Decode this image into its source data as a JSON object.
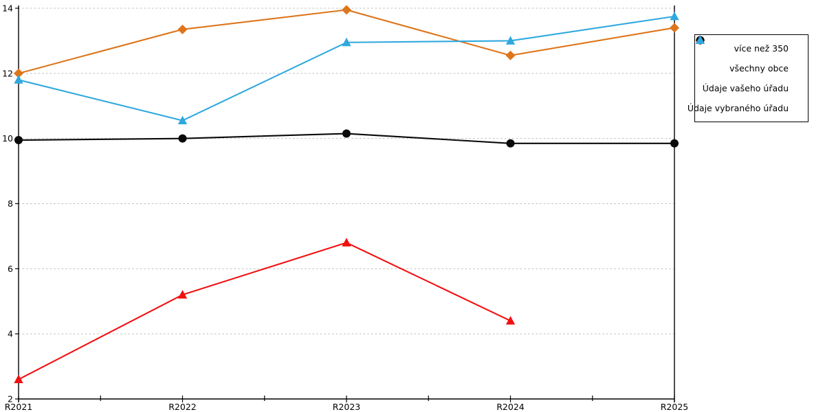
{
  "chart_data": {
    "type": "line",
    "title": "",
    "xlabel": "",
    "ylabel": "",
    "categories": [
      "R2021",
      "R2022",
      "R2023",
      "R2024",
      "R2025"
    ],
    "series": [
      {
        "name": "více než 350",
        "marker": "diamond",
        "color": "#DD751B",
        "values": [
          12.0,
          13.35,
          13.95,
          12.55,
          13.4
        ]
      },
      {
        "name": "všechny obce",
        "marker": "circle",
        "color": "#0A0A0A",
        "values": [
          9.95,
          10.0,
          10.15,
          9.85,
          9.85
        ]
      },
      {
        "name": "Údaje vašeho úřadu",
        "marker": "triangle",
        "color": "#F21010",
        "values": [
          2.6,
          5.2,
          6.8,
          4.4,
          null
        ]
      },
      {
        "name": "Údaje vybraného úřadu",
        "marker": "triangle",
        "color": "#2FA8DF",
        "values": [
          11.8,
          10.55,
          12.95,
          13.0,
          13.75
        ]
      }
    ],
    "ylim": [
      2,
      14
    ],
    "yticks": [
      2,
      4,
      6,
      8,
      10,
      12,
      14
    ],
    "grid": "dashed-horizontal",
    "legend_position": "right",
    "legend_order": [
      "více než 350",
      "všechny obce",
      "Údaje vašeho úřadu",
      "Údaje vybraného úřadu"
    ]
  },
  "colors": {
    "background": "#FFFFFF",
    "axis": "#000000",
    "gridline": "#BDBDBD",
    "tick_label": "#000000"
  }
}
